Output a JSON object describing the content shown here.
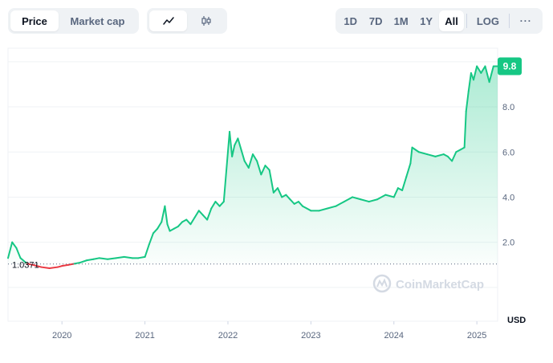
{
  "controls": {
    "metric_tabs": [
      {
        "label": "Price",
        "active": true
      },
      {
        "label": "Market cap",
        "active": false
      }
    ],
    "chart_type_tabs": [
      {
        "icon": "line-chart-icon",
        "active": true
      },
      {
        "icon": "candlestick-icon",
        "active": false
      }
    ],
    "range_tabs": [
      {
        "label": "1D",
        "active": false
      },
      {
        "label": "7D",
        "active": false
      },
      {
        "label": "1M",
        "active": false
      },
      {
        "label": "1Y",
        "active": false
      },
      {
        "label": "All",
        "active": true
      }
    ],
    "log_label": "LOG",
    "more_label": "···"
  },
  "watermark": "CoinMarketCap",
  "colors": {
    "up": "#16c784",
    "down": "#ea3943",
    "grid": "#eff2f5",
    "axis_text": "#58667e",
    "badge_text": "#ffffff"
  },
  "chart_data": {
    "type": "area",
    "currency_label": "USD",
    "yticks": [
      2.0,
      4.0,
      6.0,
      8.0
    ],
    "ylim": [
      -1.5,
      10.6
    ],
    "xlim": [
      2019.35,
      2025.25
    ],
    "xtick_labels": [
      "2020",
      "2021",
      "2022",
      "2023",
      "2024",
      "2025"
    ],
    "reference_price": 1.0371,
    "reference_label": "1.0371",
    "current_price": 9.8,
    "current_label": "9.8",
    "grid": true,
    "series": [
      {
        "x": [
          2019.35,
          2019.4,
          2019.45,
          2019.5,
          2019.58,
          2019.65,
          2019.75,
          2019.85,
          2019.95,
          2020.0,
          2020.08,
          2020.15,
          2020.22,
          2020.3,
          2020.38,
          2020.45,
          2020.55,
          2020.65,
          2020.75,
          2020.85,
          2020.92,
          2021.0,
          2021.05,
          2021.1,
          2021.15,
          2021.2,
          2021.24,
          2021.27,
          2021.3,
          2021.35,
          2021.4,
          2021.45,
          2021.5,
          2021.55,
          2021.6,
          2021.65,
          2021.7,
          2021.75,
          2021.8,
          2021.85,
          2021.9,
          2021.95,
          2022.02,
          2022.05,
          2022.08,
          2022.12,
          2022.16,
          2022.2,
          2022.25,
          2022.3,
          2022.35,
          2022.4,
          2022.45,
          2022.5,
          2022.55,
          2022.6,
          2022.65,
          2022.7,
          2022.75,
          2022.8,
          2022.85,
          2022.9,
          2022.95,
          2023.0,
          2023.1,
          2023.2,
          2023.3,
          2023.4,
          2023.5,
          2023.6,
          2023.7,
          2023.8,
          2023.9,
          2024.0,
          2024.05,
          2024.1,
          2024.15,
          2024.2,
          2024.22,
          2024.3,
          2024.4,
          2024.5,
          2024.6,
          2024.65,
          2024.7,
          2024.75,
          2024.8,
          2024.85,
          2024.87,
          2024.9,
          2024.93,
          2024.96,
          2025.0,
          2025.05,
          2025.1,
          2025.15,
          2025.2,
          2025.25
        ],
        "y": [
          1.3,
          2.0,
          1.75,
          1.3,
          1.05,
          1.0,
          0.9,
          0.85,
          0.9,
          0.95,
          1.0,
          1.05,
          1.1,
          1.2,
          1.25,
          1.3,
          1.25,
          1.3,
          1.35,
          1.3,
          1.3,
          1.35,
          1.9,
          2.4,
          2.6,
          2.9,
          3.6,
          2.8,
          2.5,
          2.6,
          2.7,
          2.9,
          3.0,
          2.8,
          3.1,
          3.4,
          3.2,
          3.0,
          3.5,
          3.8,
          3.6,
          3.8,
          6.9,
          5.8,
          6.3,
          6.6,
          6.1,
          5.6,
          5.3,
          5.9,
          5.6,
          5.0,
          5.4,
          5.2,
          4.2,
          4.4,
          4.0,
          4.1,
          3.9,
          3.7,
          3.8,
          3.6,
          3.5,
          3.4,
          3.4,
          3.5,
          3.6,
          3.8,
          4.0,
          3.9,
          3.8,
          3.9,
          4.1,
          4.0,
          4.4,
          4.3,
          4.9,
          5.5,
          6.2,
          6.0,
          5.9,
          5.8,
          5.9,
          5.8,
          5.6,
          6.0,
          6.1,
          6.2,
          7.8,
          8.7,
          9.5,
          9.2,
          9.8,
          9.5,
          9.8,
          9.1,
          9.8,
          9.8
        ]
      }
    ]
  }
}
